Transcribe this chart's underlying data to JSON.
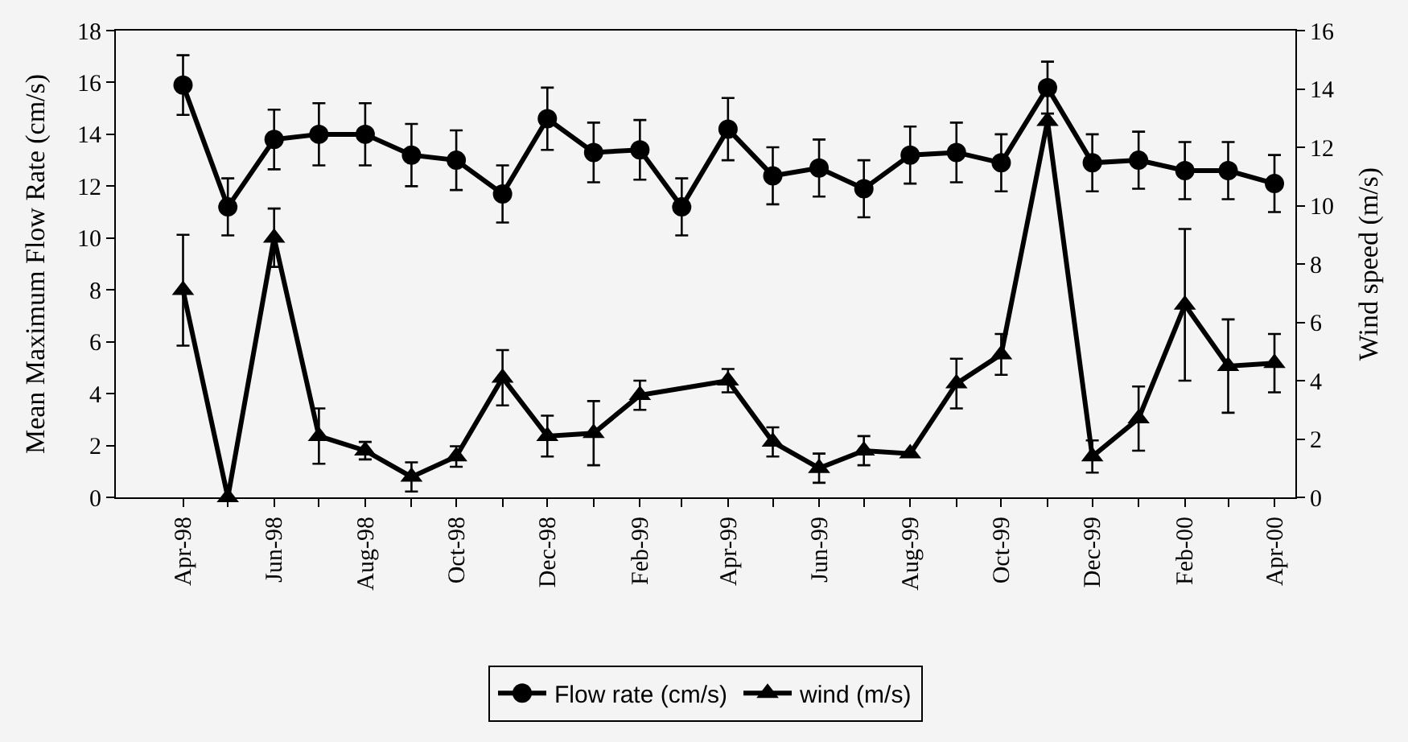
{
  "chart_data": {
    "type": "line",
    "ylabel": "Mean Maximum Flow Rate (cm/s)",
    "y2label": "Wind speed (m/s)",
    "xlim": [
      "1998-02-15",
      "2000-04-15"
    ],
    "xticks": [
      {
        "value": "1998-04",
        "label": "Apr-98"
      },
      {
        "value": "1998-05",
        "label": null
      },
      {
        "value": "1998-06",
        "label": "Jun-98"
      },
      {
        "value": "1998-07",
        "label": null
      },
      {
        "value": "1998-08",
        "label": "Aug-98"
      },
      {
        "value": "1998-09",
        "label": null
      },
      {
        "value": "1998-10",
        "label": "Oct-98"
      },
      {
        "value": "1998-11",
        "label": null
      },
      {
        "value": "1998-12",
        "label": "Dec-98"
      },
      {
        "value": "1999-01",
        "label": null
      },
      {
        "value": "1999-02",
        "label": "Feb-99"
      },
      {
        "value": "1999-03",
        "label": null
      },
      {
        "value": "1999-04",
        "label": "Apr-99"
      },
      {
        "value": "1999-05",
        "label": null
      },
      {
        "value": "1999-06",
        "label": "Jun-99"
      },
      {
        "value": "1999-07",
        "label": null
      },
      {
        "value": "1999-08",
        "label": "Aug-99"
      },
      {
        "value": "1999-09",
        "label": null
      },
      {
        "value": "1999-10",
        "label": "Oct-99"
      },
      {
        "value": "1999-11",
        "label": null
      },
      {
        "value": "1999-12",
        "label": "Dec-99"
      },
      {
        "value": "2000-01",
        "label": null
      },
      {
        "value": "2000-02",
        "label": "Feb-00"
      },
      {
        "value": "2000-03",
        "label": null
      },
      {
        "value": "2000-04",
        "label": "Apr-00"
      }
    ],
    "ylim": [
      0,
      18
    ],
    "yticks": [
      0,
      2,
      4,
      6,
      8,
      10,
      12,
      14,
      16,
      18
    ],
    "y2lim": [
      0,
      16
    ],
    "y2ticks": [
      0,
      2,
      4,
      6,
      8,
      10,
      12,
      14,
      16
    ],
    "grid": false,
    "legend": "bottom",
    "line_style": "solid",
    "series": [
      {
        "name": "Flow rate (cm/s)",
        "color": "#000000",
        "marker": "circle",
        "x": [
          "1998-04",
          "1998-05",
          "1998-06",
          "1998-07",
          "1998-08",
          "1998-09",
          "1998-10",
          "1998-11",
          "1998-12",
          "1999-01",
          "1999-02",
          "1999-03",
          "1999-04",
          "1999-05",
          "1999-06",
          "1999-07",
          "1999-08",
          "1999-09",
          "1999-10",
          "1999-11",
          "1999-12",
          "2000-01",
          "2000-02",
          "2000-03",
          "2000-04"
        ],
        "values": [
          15.9,
          11.2,
          13.8,
          14.0,
          14.0,
          13.2,
          13.0,
          11.7,
          14.6,
          13.3,
          13.4,
          11.2,
          14.2,
          12.4,
          12.7,
          11.9,
          13.2,
          13.3,
          12.9,
          15.8,
          12.9,
          13.0,
          12.6,
          12.6,
          12.1
        ],
        "errors": [
          1.15,
          1.1,
          1.15,
          1.2,
          1.2,
          1.2,
          1.15,
          1.1,
          1.2,
          1.15,
          1.15,
          1.1,
          1.2,
          1.1,
          1.1,
          1.1,
          1.1,
          1.15,
          1.1,
          1.0,
          1.1,
          1.1,
          1.1,
          1.1,
          1.1
        ]
      },
      {
        "name": "wind (m/s)",
        "color": "#000000",
        "marker": "triangle",
        "axis": "y2",
        "x": [
          "1998-04",
          "1998-05",
          "1998-06",
          "1998-07",
          "1998-08",
          "1998-09",
          "1998-10",
          "1998-11",
          "1998-12",
          "1999-01",
          "1999-02",
          "1999-04",
          "1999-05",
          "1999-06",
          "1999-07",
          "1999-08",
          "1999-09",
          "1999-10",
          "1999-11",
          "1999-12",
          "2000-01",
          "2000-02",
          "2000-03",
          "2000-04"
        ],
        "values": [
          7.1,
          0,
          8.9,
          2.1,
          1.6,
          0.7,
          1.4,
          4.1,
          2.1,
          2.2,
          3.5,
          4.0,
          1.9,
          1.0,
          1.6,
          1.5,
          3.9,
          4.9,
          12.9,
          1.4,
          2.7,
          6.6,
          4.5,
          4.6
        ],
        "errors": [
          1.9,
          null,
          1.0,
          0.95,
          0.3,
          0.5,
          0.35,
          0.95,
          0.7,
          1.1,
          0.5,
          0.4,
          0.5,
          0.5,
          0.5,
          null,
          0.85,
          0.7,
          null,
          0.55,
          1.1,
          2.6,
          1.6,
          1.0
        ]
      }
    ]
  }
}
